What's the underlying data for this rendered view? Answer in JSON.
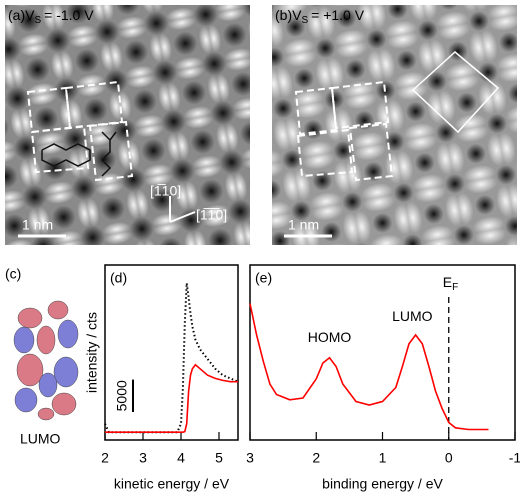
{
  "panels": {
    "a": {
      "label": "(a)",
      "v": "V",
      "sub": "S",
      "bias": "= -1.0 V",
      "scale": "1 nm",
      "dir1": "[1̅10]",
      "dir2": "[1̅1̅0]"
    },
    "b": {
      "label": "(b)",
      "v": "V",
      "sub": "S",
      "bias": "= +1.0 V",
      "scale": "1 nm"
    },
    "c": {
      "label": "(c)",
      "orbital": "LUMO"
    }
  },
  "chart_data": [
    {
      "type": "line",
      "panel_label": "(d)",
      "xlabel": "kinetic energy / eV",
      "ylabel": "intensity / cts",
      "xlim": [
        2,
        5.5
      ],
      "ylim": [
        0,
        27000
      ],
      "xticks": [
        2,
        3,
        4,
        5
      ],
      "scale_bar": 5000,
      "x": [
        2.0,
        2.1,
        2.5,
        3.0,
        3.5,
        3.9,
        4.0,
        4.05,
        4.1,
        4.15,
        4.2,
        4.25,
        4.3,
        4.38,
        4.5,
        4.7,
        4.9,
        5.1,
        5.3,
        5.5
      ],
      "series": [
        {
          "color": "#000000",
          "dash": "dotted",
          "values": [
            2500,
            1200,
            1200,
            1200,
            1200,
            1200,
            2500,
            8000,
            18000,
            24200,
            22000,
            19500,
            17500,
            15500,
            14000,
            12500,
            11000,
            10000,
            9500,
            9000
          ]
        },
        {
          "color": "#ff0000",
          "dash": "solid",
          "values": [
            1200,
            1200,
            1200,
            1200,
            1200,
            1200,
            1200,
            1200,
            1300,
            2500,
            7500,
            10000,
            11000,
            11600,
            11000,
            10000,
            9500,
            9200,
            9000,
            9000
          ]
        }
      ]
    },
    {
      "type": "line",
      "panel_label": "(e)",
      "xlabel": "binding energy / eV",
      "xlim": [
        3,
        -1
      ],
      "ylim": [
        0,
        100
      ],
      "xticks": [
        3,
        2,
        1,
        0,
        -1
      ],
      "ef_line": 0,
      "ef_symbol": "E",
      "ef_sub": "F",
      "annotations": [
        {
          "text": "HOMO",
          "x": 1.8,
          "y": 58
        },
        {
          "text": "LUMO",
          "x": 0.55,
          "y": 70
        }
      ],
      "x": [
        3.0,
        2.9,
        2.8,
        2.7,
        2.6,
        2.4,
        2.2,
        2.0,
        1.9,
        1.8,
        1.7,
        1.6,
        1.4,
        1.2,
        1.0,
        0.8,
        0.7,
        0.6,
        0.5,
        0.4,
        0.3,
        0.2,
        0.1,
        0.0,
        -0.1,
        -0.3,
        -0.6
      ],
      "series": [
        {
          "color": "#ff0000",
          "dash": "solid",
          "values": [
            78,
            60,
            45,
            32,
            26,
            23,
            24,
            35,
            44,
            47,
            42,
            32,
            22,
            20,
            22,
            30,
            42,
            55,
            60,
            55,
            42,
            28,
            18,
            10,
            7,
            6,
            6
          ]
        }
      ]
    }
  ]
}
